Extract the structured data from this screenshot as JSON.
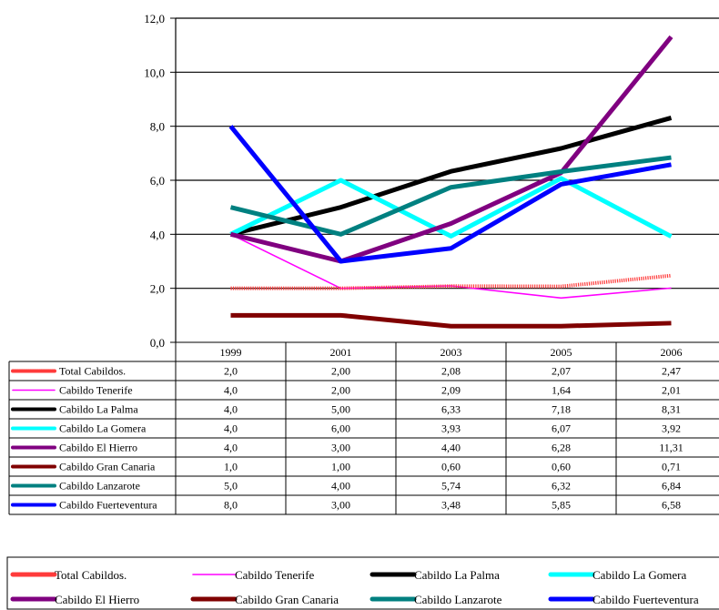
{
  "chart_data": {
    "type": "line",
    "title": "",
    "xlabel": "",
    "ylabel": "",
    "x": [
      "1999",
      "2001",
      "2003",
      "2005",
      "2006"
    ],
    "y_ticks": [
      "0,0",
      "2,0",
      "4,0",
      "6,0",
      "8,0",
      "10,0",
      "12,0"
    ],
    "ylim": [
      0,
      12
    ],
    "grid": true,
    "legend_position": "bottom",
    "series": [
      {
        "name": "Total  Cabildos.",
        "legend_label": "Total  Cabildos.",
        "color": "#ff3b3b",
        "pattern": "dotted",
        "values": [
          2.0,
          2.0,
          2.08,
          2.07,
          2.47
        ],
        "labels": [
          "2,0",
          "2,00",
          "2,08",
          "2,07",
          "2,47"
        ]
      },
      {
        "name": "Cabildo Tenerife",
        "legend_label": "Cabildo Tenerife",
        "color": "#ff00ff",
        "pattern": "thin",
        "values": [
          4.0,
          2.0,
          2.09,
          1.64,
          2.01
        ],
        "labels": [
          "4,0",
          "2,00",
          "2,09",
          "1,64",
          "2,01"
        ]
      },
      {
        "name": "Cabildo  La Palma",
        "legend_label": "Cabildo  La Palma",
        "color": "#000000",
        "pattern": "thick",
        "values": [
          4.0,
          5.0,
          6.33,
          7.18,
          8.31
        ],
        "labels": [
          "4,0",
          "5,00",
          "6,33",
          "7,18",
          "8,31"
        ]
      },
      {
        "name": "Cabildo La Gomera",
        "legend_label": "Cabildo La Gomera",
        "color": "#00ffff",
        "pattern": "thick",
        "values": [
          4.0,
          6.0,
          3.93,
          6.07,
          3.92
        ],
        "labels": [
          "4,0",
          "6,00",
          "3,93",
          "6,07",
          "3,92"
        ]
      },
      {
        "name": "Cabildo El Hierro",
        "legend_label": "Cabildo El Hierro",
        "color": "#800080",
        "pattern": "thick",
        "values": [
          4.0,
          3.0,
          4.4,
          6.28,
          11.31
        ],
        "labels": [
          "4,0",
          "3,00",
          "4,40",
          "6,28",
          "11,31"
        ]
      },
      {
        "name": "Cabildo Gran Canaria",
        "legend_label": "Cabildo Gran Canaria",
        "color": "#800000",
        "pattern": "thick",
        "values": [
          1.0,
          1.0,
          0.6,
          0.6,
          0.71
        ],
        "labels": [
          "1,0",
          "1,00",
          "0,60",
          "0,60",
          "0,71"
        ]
      },
      {
        "name": "Cabildo Lanzarote",
        "legend_label": "Cabildo Lanzarote",
        "color": "#008080",
        "pattern": "thick",
        "values": [
          5.0,
          4.0,
          5.74,
          6.32,
          6.84
        ],
        "labels": [
          "5,0",
          "4,00",
          "5,74",
          "6,32",
          "6,84"
        ]
      },
      {
        "name": "Cabildo Fuerteventura",
        "legend_label": "Cabildo Fuerteventura",
        "color": "#0000ff",
        "pattern": "thick",
        "values": [
          8.0,
          3.0,
          3.48,
          5.85,
          6.58
        ],
        "labels": [
          "8,0",
          "3,00",
          "3,48",
          "5,85",
          "6,58"
        ]
      }
    ]
  }
}
